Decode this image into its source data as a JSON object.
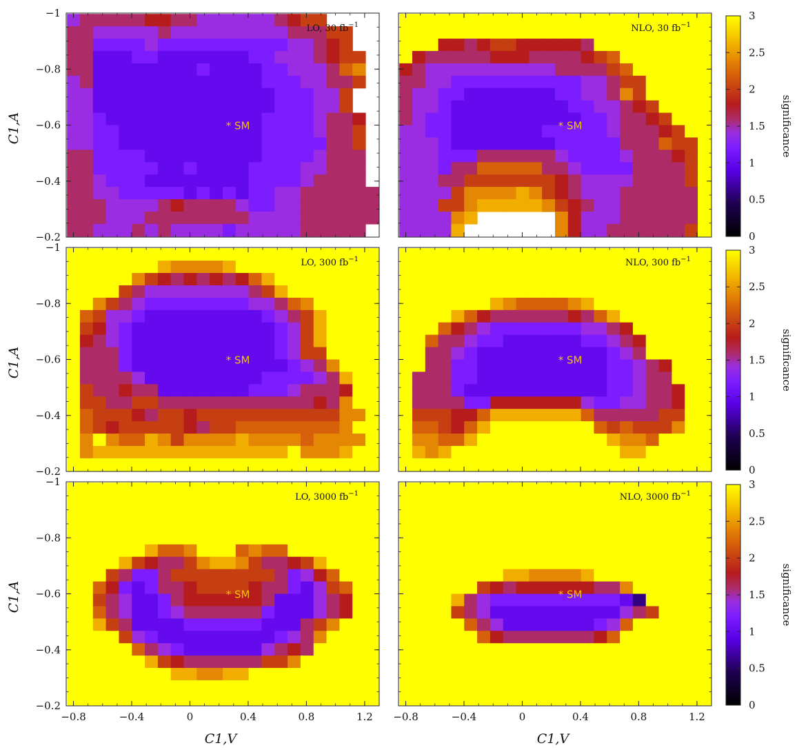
{
  "chart_data": {
    "type": "heatmap",
    "grid": {
      "x_range": [
        -0.8,
        1.25
      ],
      "y_range": [
        -0.975,
        -0.225
      ],
      "nx": 24,
      "ny": 18
    },
    "xlabel": "C1,V",
    "ylabel": "C1,A",
    "xlim": [
      -0.85,
      1.3
    ],
    "ylim": [
      -1.0,
      -0.2
    ],
    "y_inverted": true,
    "x_ticks": [
      -0.8,
      -0.4,
      0,
      0.4,
      0.8,
      1.2
    ],
    "x_tick_labels": [
      "−0.8",
      "−0.4",
      "0",
      "0.4",
      "0.8",
      "1.2"
    ],
    "y_ticks": [
      -1,
      -0.8,
      -0.6,
      -0.4,
      -0.2
    ],
    "y_tick_labels": [
      "−1",
      "−0.8",
      "−0.6",
      "−0.4",
      "−0.2"
    ],
    "colorbar": {
      "label": "significance",
      "range": [
        0,
        3
      ],
      "ticks": [
        "0",
        "0.5",
        "1",
        "1.5",
        "2",
        "2.5",
        "3"
      ],
      "stops": [
        [
          0,
          "#000000"
        ],
        [
          0.15,
          "#1e0050"
        ],
        [
          0.3,
          "#5a00e6"
        ],
        [
          0.4,
          "#7c1cff"
        ],
        [
          0.47,
          "#9b2ee0"
        ],
        [
          0.53,
          "#ad2c6a"
        ],
        [
          0.6,
          "#b61c1c"
        ],
        [
          0.75,
          "#da6a08"
        ],
        [
          0.87,
          "#f2b000"
        ],
        [
          1,
          "#ffff00"
        ]
      ]
    },
    "marker": {
      "label": "* SM",
      "x": 0.25,
      "y": -0.6
    },
    "panels": [
      {
        "label": "LO, 30 fb",
        "label_sup": "−1",
        "rows": [
          "788888998877777789AAxxxx",
          "88777778777777777888AAxx",
          "886666766666666667789Axx",
          "885556655555556677789AAx",
          "885555555565555667778BCx",
          "7855555555555556667788Ax",
          "775555555555555566677Axx",
          "775555555555555566677Axx",
          "77655555555555566667889x",
          "7766555555555556666788Ax",
          "7766555555555556666688Ax",
          "88666655555555566667888x",
          "88666665565555666677888x",
          "88766655555555666678888x",
          "887766666565656677888888",
          "888777789888876677888888",
          "888777888888887777888888",
          "88777878777767777788888x"
        ]
      },
      {
        "label": "NLO, 30 fb",
        "label_sup": "−1",
        "rows": [
          "ZZZZZZZZZZZZZZZZZZZZZZZZ",
          "ZZZZZZZZZZZZZZZZZZZZZZZZ",
          "ZZZ9989AA999998ZZZZZZZZZ",
          "Z98888899988889ABZZZZZZZ",
          "9877777777778888ABZZZZZZ",
          "88776666666666778AAZZZZZ",
          "87766555555566778CAZZZZZ",
          "8776555555555667789AZZZZ",
          "87665555555555667889AZZZ",
          "776655555556666678889AZZ",
          "77765555555566666888BAAZ",
          "7776668888887666678889AZ",
          "777688BBBBB88766668888AZ",
          "77788AAAAAAA9877778888AZ",
          "7777ACCCCDCA98777888888Z",
          "777AACDDDDDCA9877888888Z",
          "7777CDxxxxxxC9777888888Z",
          "7777DxxxxxxxC977888888AZ"
        ]
      },
      {
        "label": "LO, 300 fb",
        "label_sup": "−1",
        "rows": [
          "ZZZZZZZZZZZZZZZZZZZZZZZZ",
          "ZZZZZZZDCCCCDZZZZZZZZZZZ",
          "ZZZZZCA9898989BDZZZZZZZZ",
          "ZZZZA8777777778ADZZZZZZZ",
          "ZZCA8766666666778BCZZZZZ",
          "ZBA776555555555678ADZZZZ",
          "ZA9765555555555567ADZZZZ",
          "Z98765555555555567ADZZZZ",
          "Z88865555555555567AAZZZZ",
          "Z8886555555555555678CZZZ",
          "Z88887555555555666678DZZ",
          "ZA88988555555566678889ZZ",
          "ZAA88AA88888888888898CZZ",
          "ZBAAA98AA9AAAAAAAAAAACCZ",
          "ZBA9AAAAA98AABBBBBBBBCZZ",
          "ZCZCBBDCACCCCDCCCCBCCCCZ",
          "ZCDDDDDDDDDDDDDDDZCCCDZZ",
          "ZZZZZZZZZZZZZZZZZZZZZZZZ"
        ]
      },
      {
        "label": "NLO, 300 fb",
        "label_sup": "−1",
        "rows": [
          "ZZZZZZZZZZZZZZZZZZZZZZZZ",
          "ZZZZZZZZZZZZZZZZZZZZZZZZ",
          "ZZZZZZZZZZZZZZZZZZZZZZZZ",
          "ZZZZZZZZZZZZZZZZZZZZZZZZ",
          "ZZZZZZZDCBBBBCDZZZZZZZZZ",
          "ZZZZDB988888898BDZZZZZZZ",
          "ZZZB98766666667789ZZZZZZ",
          "ZZB8876655555566789ZZZZZ",
          "ZZ88765555555555678ZZZZZ",
          "ZZ8866555555555566789ZZZ",
          "Z88866555555555566788ZZZ",
          "Z888655555555555667889ZZ",
          "Z888866999999976677889ZZ",
          "ZAAA99BDDDDDDDB88888AAZZ",
          "ZBBA9BDZZZZZZZZBABAAACZZ",
          "ZCCBBDZZZZZZZZZZDCCBZZZZ",
          "ZDCDZZZZZZZZZZZZZDDZZZZZ",
          "ZZZZZZZZZZZZZZZZZZZZZZZZ"
        ]
      },
      {
        "label": "LO, 3000 fb",
        "label_sup": "−1",
        "rows": [
          "ZZZZZZZZZZZZZZZZZZZZZZZZ",
          "ZZZZZZZZZZZZZZZZZZZZZZZZ",
          "ZZZZZZZZZZZZZZZZZZZZZZZZ",
          "ZZZZZZZZZZZZZZZZZZZZZZZZ",
          "ZZZZZZZZZZZZZZZZZZZZZZZZ",
          "ZZZZZZDBBCZZZBCBBZZZZZZZ",
          "ZZZZDA988ACDDCA889ADZZZZ",
          "ZZZA8668AAAAAAAA8679BZZZ",
          "ZZB9656889AAAA988657ABZZ",
          "ZZA8755689999998555789ZZ",
          "ZZB8755678888886555789ZZ",
          "ZZDA855556666665558ACZZZ",
          "ZZZZA76555555555678CZZZZ",
          "ZZZZZB8765555557898ZZZZZ",
          "ZZZZZZDA9888888AACZZZZZZ",
          "ZZZZZZZZDDCCDDZZZZZZZZZZ",
          "ZZZZZZZZZZZZZZZZZZZZZZZZ",
          "ZZZZZZZZZZZZZZZZZZZZZZZZ"
        ]
      },
      {
        "label": "NLO, 3000 fb",
        "label_sup": "−1",
        "rows": [
          "ZZZZZZZZZZZZZZZZZZZZZZZZ",
          "ZZZZZZZZZZZZZZZZZZZZZZZZ",
          "ZZZZZZZZZZZZZZZZZZZZZZZZ",
          "ZZZZZZZZZZZZZZZZZZZZZZZZ",
          "ZZZZZZZZZZZZZZZZZZZZZZZZ",
          "ZZZZZZZZZZZZZZZZZZZZZZZZ",
          "ZZZZZZZZZZZZZZZZZZZZZZZZ",
          "ZZZZZZZZDDCCCCDZZZZZZZZZ",
          "ZZZZZZA9899999988CZZZZZZ",
          "ZZZZD87666666666653ZZZZZ",
          "ZZZZA87555555555578AZZZZ",
          "ZZZZZB87555555567BZZZZZZ",
          "ZZZZZZB988888889BZZZZZZZ",
          "ZZZZZZZZZZZZZZZZZZZZZZZZ",
          "ZZZZZZZZZZZZZZZZZZZZZZZZ",
          "ZZZZZZZZZZZZZZZZZZZZZZZZ",
          "ZZZZZZZZZZZZZZZZZZZZZZZZ",
          "ZZZZZZZZZZZZZZZZZZZZZZZZ"
        ]
      }
    ]
  }
}
